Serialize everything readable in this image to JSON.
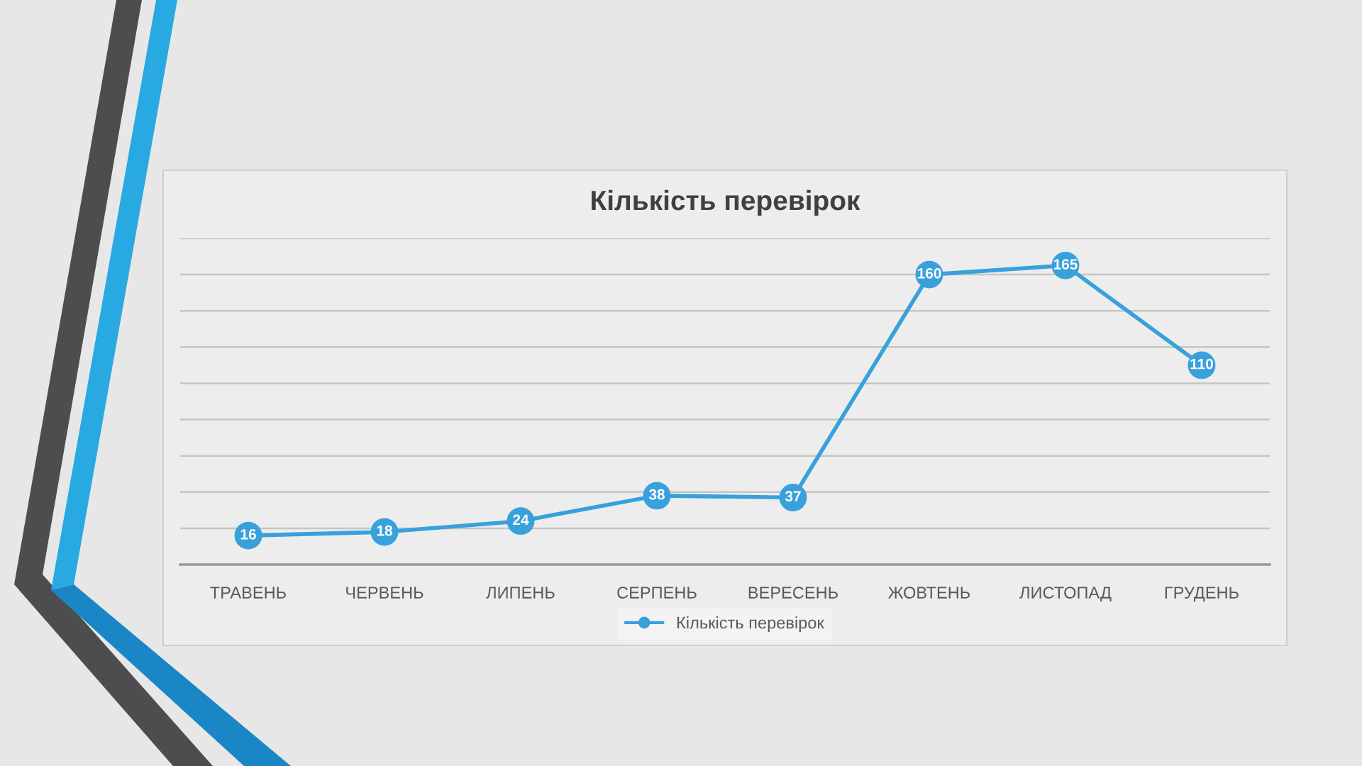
{
  "chart_data": {
    "type": "line",
    "title": "Кількість перевірок",
    "categories": [
      "ТРАВЕНЬ",
      "ЧЕРВЕНЬ",
      "ЛИПЕНЬ",
      "СЕРПЕНЬ",
      "ВЕРЕСЕНЬ",
      "ЖОВТЕНЬ",
      "ЛИСТОПАД",
      "ГРУДЕНЬ"
    ],
    "series": [
      {
        "name": "Кількість перевірок",
        "color": "#38a1dc",
        "values": [
          16,
          18,
          24,
          38,
          37,
          160,
          165,
          110
        ]
      }
    ],
    "ylim": [
      0,
      180
    ],
    "yticks": [
      {
        "value": 0,
        "label": null
      },
      {
        "value": 20,
        "label": null
      },
      {
        "value": 40,
        "label": null
      },
      {
        "value": 60,
        "label": null
      },
      {
        "value": 80,
        "label": null
      },
      {
        "value": 100,
        "label": null
      },
      {
        "value": 120,
        "label": null
      },
      {
        "value": 140,
        "label": null
      },
      {
        "value": 160,
        "label": null
      },
      {
        "value": 180,
        "label": null
      }
    ],
    "tick_labels": "x",
    "grid": "y",
    "legend": "bottom",
    "marker": "circle",
    "line_style": "solid",
    "data_labels": true
  }
}
